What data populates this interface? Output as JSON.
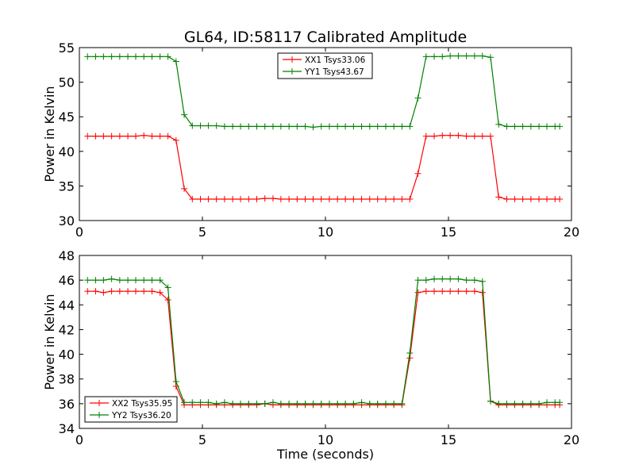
{
  "figure": {
    "title": "GL64, ID:58117 Calibrated Amplitude"
  },
  "chart_data": [
    {
      "type": "line",
      "title": "",
      "xlabel": "",
      "ylabel": "Power in Kelvin",
      "xlim": [
        0,
        20
      ],
      "ylim": [
        30,
        55
      ],
      "xticks": [
        0,
        5,
        10,
        15,
        20
      ],
      "yticks": [
        30,
        35,
        40,
        45,
        50,
        55
      ],
      "grid": false,
      "legend_position": "top-center",
      "marker": "plus",
      "x": [
        0.33,
        0.66,
        0.98,
        1.31,
        1.64,
        1.97,
        2.29,
        2.62,
        2.95,
        3.28,
        3.6,
        3.93,
        4.26,
        4.59,
        4.92,
        5.24,
        5.57,
        5.9,
        6.23,
        6.55,
        6.88,
        7.21,
        7.54,
        7.87,
        8.19,
        8.52,
        8.85,
        9.18,
        9.5,
        9.83,
        10.16,
        10.49,
        10.81,
        11.14,
        11.47,
        11.8,
        12.12,
        12.45,
        12.78,
        13.11,
        13.43,
        13.76,
        14.09,
        14.42,
        14.75,
        15.07,
        15.4,
        15.73,
        16.06,
        16.38,
        16.71,
        17.04,
        17.37,
        17.69,
        18.02,
        18.35,
        18.68,
        19.0,
        19.33,
        19.52
      ],
      "series": [
        {
          "name": "XX1 Tsys33.06",
          "color": "#ff0000",
          "values": [
            42.2,
            42.2,
            42.2,
            42.2,
            42.2,
            42.2,
            42.2,
            42.3,
            42.2,
            42.2,
            42.2,
            41.6,
            34.6,
            33.1,
            33.1,
            33.1,
            33.1,
            33.1,
            33.1,
            33.1,
            33.1,
            33.1,
            33.2,
            33.2,
            33.1,
            33.1,
            33.1,
            33.1,
            33.1,
            33.1,
            33.1,
            33.1,
            33.1,
            33.1,
            33.1,
            33.1,
            33.1,
            33.1,
            33.1,
            33.1,
            33.1,
            36.8,
            42.2,
            42.2,
            42.3,
            42.3,
            42.3,
            42.2,
            42.2,
            42.2,
            42.2,
            33.4,
            33.1,
            33.1,
            33.1,
            33.1,
            33.1,
            33.1,
            33.1,
            33.1
          ]
        },
        {
          "name": "YY1 Tsys43.67",
          "color": "#008000",
          "values": [
            53.7,
            53.7,
            53.7,
            53.7,
            53.7,
            53.7,
            53.7,
            53.7,
            53.7,
            53.7,
            53.7,
            53.0,
            45.3,
            43.7,
            43.7,
            43.7,
            43.7,
            43.6,
            43.6,
            43.6,
            43.6,
            43.6,
            43.6,
            43.6,
            43.6,
            43.6,
            43.6,
            43.6,
            43.5,
            43.6,
            43.6,
            43.6,
            43.6,
            43.6,
            43.6,
            43.6,
            43.6,
            43.6,
            43.6,
            43.6,
            43.6,
            47.7,
            53.7,
            53.7,
            53.7,
            53.8,
            53.8,
            53.8,
            53.8,
            53.8,
            53.6,
            43.9,
            43.6,
            43.6,
            43.6,
            43.6,
            43.6,
            43.6,
            43.6,
            43.6
          ]
        }
      ]
    },
    {
      "type": "line",
      "title": "",
      "xlabel": "Time (seconds)",
      "ylabel": "Power in Kelvin",
      "xlim": [
        0,
        20
      ],
      "ylim": [
        34,
        48
      ],
      "xticks": [
        0,
        5,
        10,
        15,
        20
      ],
      "yticks": [
        34,
        36,
        38,
        40,
        42,
        44,
        46,
        48
      ],
      "grid": false,
      "legend_position": "bottom-left",
      "marker": "plus",
      "x": [
        0.33,
        0.66,
        0.98,
        1.31,
        1.64,
        1.97,
        2.29,
        2.62,
        2.95,
        3.28,
        3.6,
        3.93,
        4.26,
        4.59,
        4.92,
        5.24,
        5.57,
        5.9,
        6.23,
        6.55,
        6.88,
        7.21,
        7.54,
        7.87,
        8.19,
        8.52,
        8.85,
        9.18,
        9.5,
        9.83,
        10.16,
        10.49,
        10.81,
        11.14,
        11.47,
        11.8,
        12.12,
        12.45,
        12.78,
        13.11,
        13.43,
        13.76,
        14.09,
        14.42,
        14.75,
        15.07,
        15.4,
        15.73,
        16.06,
        16.38,
        16.71,
        17.04,
        17.37,
        17.69,
        18.02,
        18.35,
        18.68,
        19.0,
        19.33,
        19.52
      ],
      "series": [
        {
          "name": "XX2 Tsys35.95",
          "color": "#ff0000",
          "values": [
            45.1,
            45.1,
            45.0,
            45.1,
            45.1,
            45.1,
            45.1,
            45.1,
            45.1,
            45.0,
            44.4,
            37.4,
            35.9,
            35.9,
            35.9,
            35.9,
            35.9,
            35.9,
            35.9,
            35.9,
            35.9,
            35.9,
            36.0,
            35.9,
            35.9,
            35.9,
            35.9,
            35.9,
            35.9,
            35.9,
            35.9,
            35.9,
            35.9,
            35.9,
            35.9,
            35.9,
            35.9,
            35.9,
            35.9,
            35.9,
            39.7,
            45.0,
            45.1,
            45.1,
            45.1,
            45.1,
            45.1,
            45.1,
            45.1,
            45.0,
            36.2,
            35.9,
            35.9,
            35.9,
            35.9,
            35.9,
            35.9,
            35.9,
            35.9,
            35.9
          ]
        },
        {
          "name": "YY2 Tsys36.20",
          "color": "#008000",
          "values": [
            46.0,
            46.0,
            46.0,
            46.1,
            46.0,
            46.0,
            46.0,
            46.0,
            46.0,
            46.0,
            45.4,
            37.8,
            36.1,
            36.1,
            36.1,
            36.1,
            36.0,
            36.1,
            36.0,
            36.0,
            36.0,
            36.0,
            36.0,
            36.1,
            36.0,
            36.0,
            36.0,
            36.0,
            36.0,
            36.0,
            36.0,
            36.0,
            36.0,
            36.0,
            36.1,
            36.0,
            36.0,
            36.0,
            36.0,
            36.0,
            40.1,
            46.0,
            46.0,
            46.1,
            46.1,
            46.1,
            46.1,
            46.0,
            46.0,
            45.9,
            36.2,
            36.0,
            36.0,
            36.0,
            36.0,
            36.0,
            36.0,
            36.1,
            36.1,
            36.1
          ]
        }
      ]
    }
  ]
}
